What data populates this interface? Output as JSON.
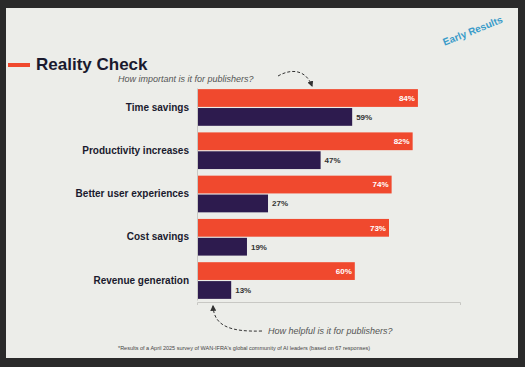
{
  "chart_data": {
    "type": "bar",
    "orientation": "horizontal",
    "title": "Reality Check",
    "annotations": [
      "Early Results",
      "*Results of a April 2025 survey of WAN-IFRA's global community of AI leaders (based on 67 responses)"
    ],
    "categories": [
      "Time savings",
      "Productivity increases",
      "Better user experiences",
      "Cost savings",
      "Revenue generation"
    ],
    "series": [
      {
        "name": "How important is it for publishers?",
        "color": "#f0492e",
        "values": [
          84,
          82,
          74,
          73,
          60
        ],
        "value_labels": [
          "84%",
          "82%",
          "74%",
          "73%",
          "60%"
        ]
      },
      {
        "name": "How helpful is it for publishers?",
        "color": "#2d1b4e",
        "values": [
          59,
          47,
          27,
          19,
          13
        ],
        "value_labels": [
          "59%",
          "47%",
          "27%",
          "19%",
          "13%"
        ]
      }
    ],
    "xlim": [
      0,
      100
    ],
    "xticks": [],
    "grid": false,
    "data_labels": true,
    "tick_labels": "y"
  }
}
